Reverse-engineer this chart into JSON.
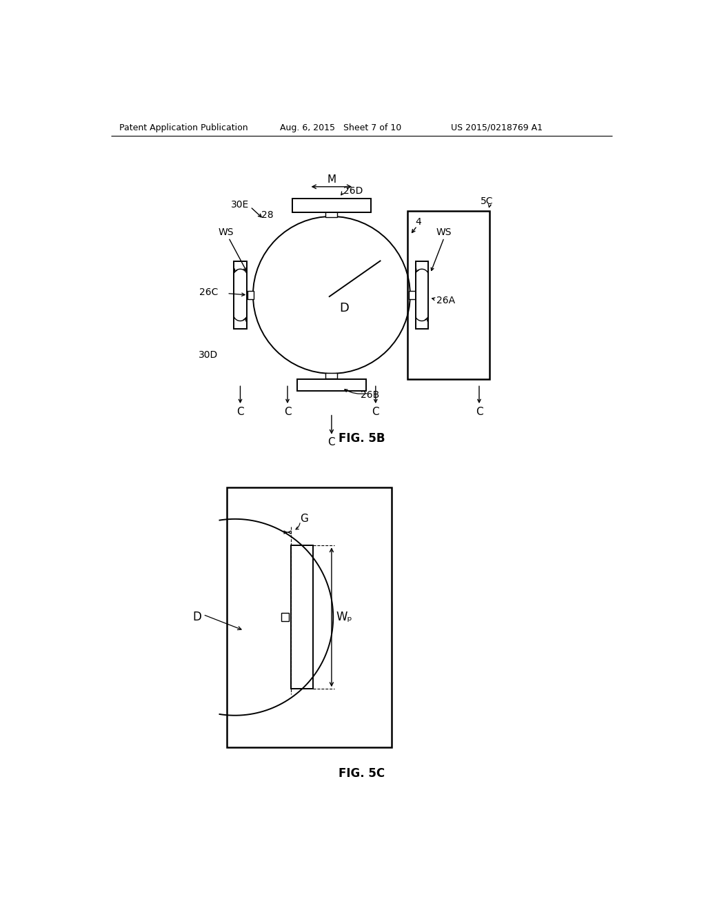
{
  "header_left": "Patent Application Publication",
  "header_mid": "Aug. 6, 2015   Sheet 7 of 10",
  "header_right": "US 2015/0218769 A1",
  "fig5b_label": "FIG. 5B",
  "fig5c_label": "FIG. 5C",
  "bg_color": "#ffffff",
  "line_color": "#000000"
}
